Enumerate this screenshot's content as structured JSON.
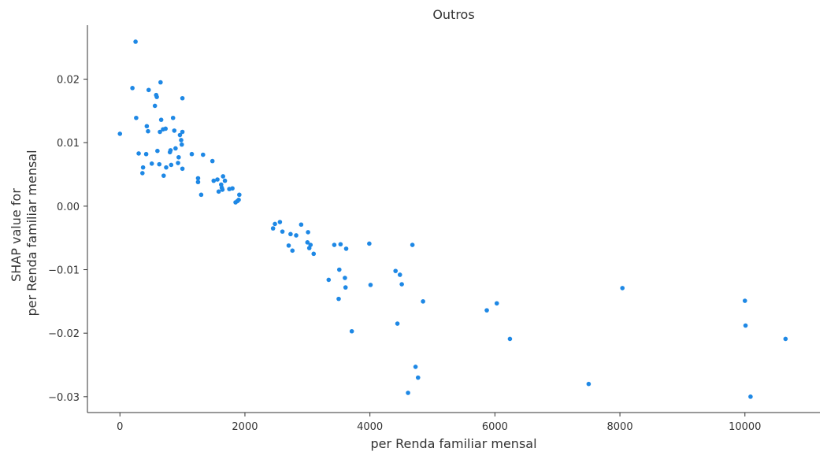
{
  "chart_data": {
    "type": "scatter",
    "title": "Outros",
    "xlabel": "per Renda familiar mensal",
    "ylabel_lines": [
      "SHAP value for",
      "per Renda familiar mensal"
    ],
    "xlim": [
      -520,
      11200
    ],
    "ylim": [
      -0.0325,
      0.0285
    ],
    "xticks": [
      0,
      2000,
      4000,
      6000,
      8000,
      10000
    ],
    "xtick_labels": [
      "0",
      "2000",
      "4000",
      "6000",
      "8000",
      "10000"
    ],
    "yticks": [
      -0.03,
      -0.02,
      -0.01,
      0.0,
      0.01,
      0.02
    ],
    "ytick_labels": [
      "−0.03",
      "−0.02",
      "−0.01",
      "0.00",
      "0.01",
      "0.02"
    ],
    "grid": false,
    "point_color": "#1e88e5",
    "points": [
      [
        0,
        0.0114
      ],
      [
        200,
        0.0186
      ],
      [
        250,
        0.0259
      ],
      [
        260,
        0.0139
      ],
      [
        300,
        0.0083
      ],
      [
        360,
        0.0052
      ],
      [
        370,
        0.0061
      ],
      [
        420,
        0.0082
      ],
      [
        430,
        0.0126
      ],
      [
        450,
        0.0118
      ],
      [
        460,
        0.0183
      ],
      [
        510,
        0.0067
      ],
      [
        560,
        0.0158
      ],
      [
        580,
        0.0175
      ],
      [
        590,
        0.0172
      ],
      [
        600,
        0.0087
      ],
      [
        630,
        0.0066
      ],
      [
        640,
        0.0117
      ],
      [
        650,
        0.0195
      ],
      [
        660,
        0.0136
      ],
      [
        690,
        0.0121
      ],
      [
        700,
        0.0048
      ],
      [
        730,
        0.0122
      ],
      [
        740,
        0.0061
      ],
      [
        800,
        0.0085
      ],
      [
        810,
        0.0088
      ],
      [
        820,
        0.0065
      ],
      [
        850,
        0.0139
      ],
      [
        870,
        0.0119
      ],
      [
        890,
        0.0091
      ],
      [
        930,
        0.0068
      ],
      [
        940,
        0.0077
      ],
      [
        960,
        0.0112
      ],
      [
        980,
        0.0104
      ],
      [
        990,
        0.0097
      ],
      [
        1000,
        0.0117
      ],
      [
        1000,
        0.0059
      ],
      [
        1000,
        0.017
      ],
      [
        1150,
        0.0082
      ],
      [
        1250,
        0.0044
      ],
      [
        1250,
        0.0038
      ],
      [
        1300,
        0.0018
      ],
      [
        1330,
        0.0081
      ],
      [
        1480,
        0.0071
      ],
      [
        1500,
        0.004
      ],
      [
        1560,
        0.0042
      ],
      [
        1580,
        0.0023
      ],
      [
        1620,
        0.0034
      ],
      [
        1630,
        0.0029
      ],
      [
        1640,
        0.0026
      ],
      [
        1650,
        0.0047
      ],
      [
        1680,
        0.004
      ],
      [
        1750,
        0.0027
      ],
      [
        1800,
        0.0028
      ],
      [
        1850,
        0.0006
      ],
      [
        1880,
        0.0008
      ],
      [
        1900,
        0.001
      ],
      [
        1910,
        0.0018
      ],
      [
        2450,
        -0.0035
      ],
      [
        2480,
        -0.0028
      ],
      [
        2560,
        -0.0025
      ],
      [
        2600,
        -0.004
      ],
      [
        2700,
        -0.0062
      ],
      [
        2730,
        -0.0044
      ],
      [
        2760,
        -0.007
      ],
      [
        2820,
        -0.0046
      ],
      [
        2900,
        -0.0029
      ],
      [
        3000,
        -0.0057
      ],
      [
        3010,
        -0.0041
      ],
      [
        3030,
        -0.0066
      ],
      [
        3050,
        -0.0061
      ],
      [
        3100,
        -0.0075
      ],
      [
        3340,
        -0.0116
      ],
      [
        3430,
        -0.0061
      ],
      [
        3500,
        -0.0146
      ],
      [
        3510,
        -0.01
      ],
      [
        3530,
        -0.006
      ],
      [
        3600,
        -0.0113
      ],
      [
        3610,
        -0.0128
      ],
      [
        3620,
        -0.0067
      ],
      [
        3710,
        -0.0197
      ],
      [
        3990,
        -0.0059
      ],
      [
        4010,
        -0.0124
      ],
      [
        4410,
        -0.0102
      ],
      [
        4440,
        -0.0185
      ],
      [
        4480,
        -0.0108
      ],
      [
        4510,
        -0.0123
      ],
      [
        4610,
        -0.0294
      ],
      [
        4680,
        -0.0061
      ],
      [
        4730,
        -0.0253
      ],
      [
        4770,
        -0.027
      ],
      [
        4850,
        -0.015
      ],
      [
        5870,
        -0.0164
      ],
      [
        6030,
        -0.0153
      ],
      [
        6240,
        -0.0209
      ],
      [
        7500,
        -0.028
      ],
      [
        8040,
        -0.0129
      ],
      [
        10000,
        -0.0149
      ],
      [
        10010,
        -0.0188
      ],
      [
        10090,
        -0.03
      ],
      [
        10650,
        -0.0209
      ]
    ]
  }
}
